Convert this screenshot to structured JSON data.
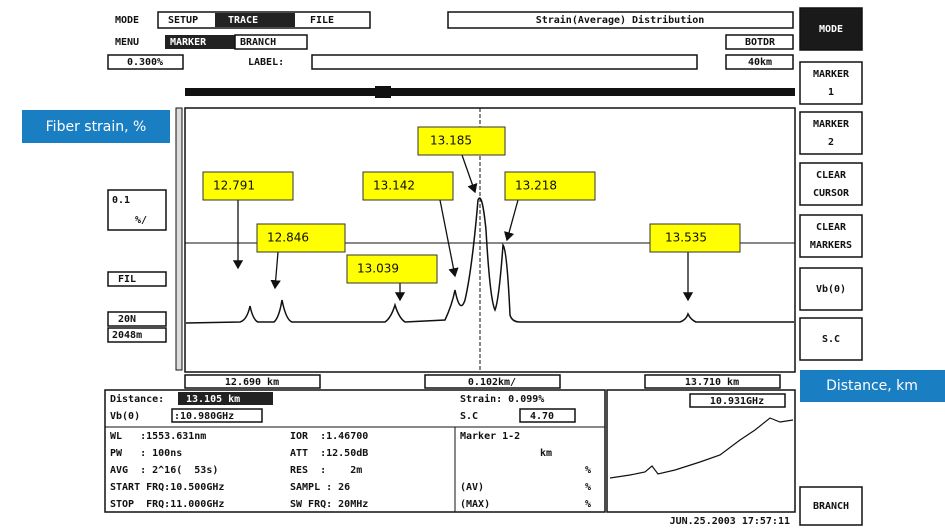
{
  "header": {
    "mode_label": "MODE",
    "mode_tabs": [
      "SETUP",
      "TRACE",
      "FILE"
    ],
    "title": "Strain(Average) Distribution",
    "instrument": "BOTDR",
    "menu_label": "MENU",
    "menu_tabs": [
      "MARKER",
      "BRANCH"
    ],
    "scale": "0.300%",
    "label_field": "LABEL:",
    "range": "40km"
  },
  "side_buttons": [
    [
      "MODE"
    ],
    [
      "MARKER",
      "1"
    ],
    [
      "MARKER",
      "2"
    ],
    [
      "CLEAR",
      "CURSOR"
    ],
    [
      "CLEAR",
      "MARKERS"
    ],
    [
      "Vb(0)"
    ],
    [
      "S.C"
    ],
    [
      "BRANCH"
    ]
  ],
  "left_controls": [
    [
      "0.1",
      "%/"
    ],
    [
      "FIL"
    ],
    [
      "20N"
    ],
    [
      "2048m"
    ]
  ],
  "annotations": {
    "y_axis": "Fiber strain, %",
    "x_axis": "Distance, km",
    "markers": [
      "12.791",
      "12.846",
      "13.039",
      "13.142",
      "13.185",
      "13.218",
      "13.535"
    ]
  },
  "axis": {
    "start": "12.690 km",
    "scale": "0.102km/",
    "end": "13.710 km"
  },
  "info": {
    "distance_label": "Distance:",
    "distance": "13.105 km",
    "strain": "Strain: 0.099%",
    "vb_label": "Vb(0)",
    "vb": ":10.980GHz",
    "sc_label": "S.C",
    "sc": "4.70",
    "params": [
      [
        "WL   :1553.631nm",
        "IOR  :1.46700"
      ],
      [
        "PW   : 100ns",
        "ATT  :12.50dB"
      ],
      [
        "AVG  : 2^16(  53s)",
        "RES  :    2m"
      ],
      [
        "START FRQ:10.500GHz",
        "SAMPL : 26"
      ],
      [
        "STOP  FRQ:11.000GHz",
        "SW FRQ: 20MHz"
      ]
    ],
    "marker_title": "Marker  1-2",
    "marker_rows": [
      "km",
      "%",
      "%",
      "%"
    ],
    "av": "(AV)",
    "max": "(MAX)",
    "mini_freq": "10.931GHz",
    "timestamp": "JUN.25.2003 17:57:11"
  }
}
